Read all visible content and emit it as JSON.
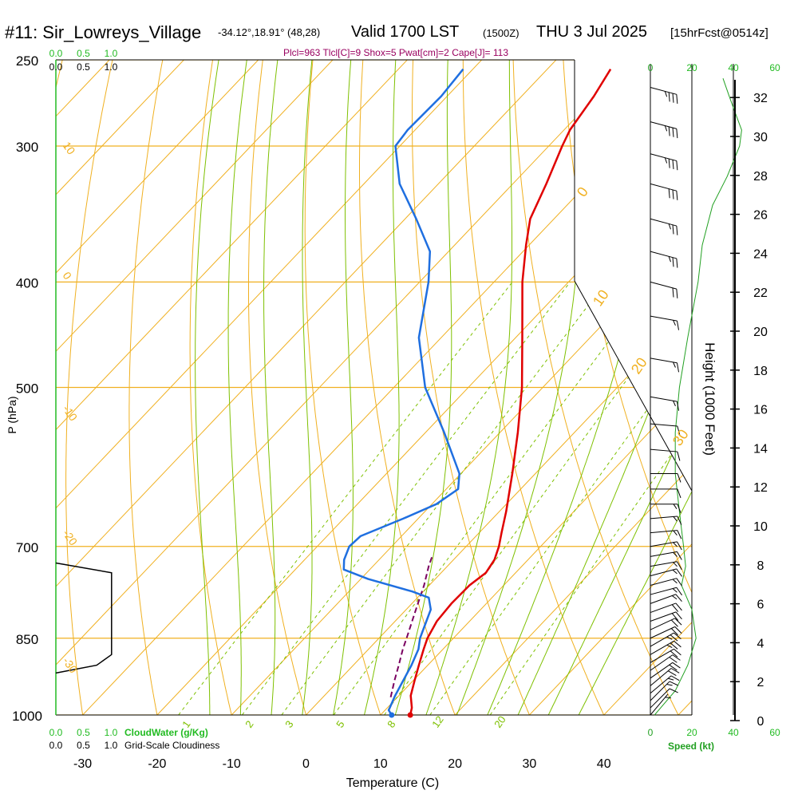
{
  "header": {
    "station": "#11: Sir_Lowreys_Village",
    "coords": "-34.12°,18.91° (48,28)",
    "valid_main": "Valid 1700 LST",
    "valid_utc": "(1500Z)",
    "date": "THU 3 Jul 2025",
    "forecast": "[15hrFcst@0514z]",
    "indices": "Plcl=963 Tlcl[C]=9 Shox=5 Pwat[cm]=2 Cape[J]= 113"
  },
  "colors": {
    "temperature": "#e00000",
    "dewpoint": "#1f6fe0",
    "parcel": "#7a0060",
    "isotherm": "#f0b020",
    "dry_adiabat": "#f0b020",
    "moist_adiabat": "#7ec000",
    "mixing_ratio": "#7ec000",
    "wind_speed": "#22a022",
    "cloud_labels": "#22bb22",
    "indices_text": "#990060"
  },
  "chart_data": {
    "type": "line",
    "chart_kind": "skew-T log-P sounding",
    "xlabel": "Temperature (C)",
    "ylabel": "P (hPa)",
    "y2label": "Height (1000 Feet)",
    "xticks": [
      -30,
      -20,
      -10,
      0,
      10,
      20,
      30,
      40
    ],
    "pressure_ticks": [
      250,
      300,
      400,
      500,
      700,
      850,
      1000
    ],
    "height_ticks": [
      0,
      2,
      4,
      6,
      8,
      10,
      12,
      14,
      16,
      18,
      20,
      22,
      24,
      26,
      28,
      30,
      32
    ],
    "isotherm_labels": [
      "10",
      "0",
      "-10",
      "-20",
      "-30"
    ],
    "right_isotherm_labels": [
      "0",
      "10",
      "20",
      "30"
    ],
    "mixing_ratio_labels": [
      "1",
      "2",
      "3",
      "5",
      "8",
      "12",
      "20"
    ],
    "cloudwater_label": "CloudWater (g/Kg)",
    "cloudiness_label": "Grid-Scale Cloudiness",
    "scale_ticks": [
      "0.0",
      "0.5",
      "1.0"
    ],
    "speed_label": "Speed (kt)",
    "speed_ticks": [
      "0",
      "20",
      "40",
      "60"
    ],
    "temperature": [
      {
        "p": 1000,
        "t": 14
      },
      {
        "p": 985,
        "t": 13.3
      },
      {
        "p": 960,
        "t": 11.6
      },
      {
        "p": 930,
        "t": 10.2
      },
      {
        "p": 900,
        "t": 8.8
      },
      {
        "p": 870,
        "t": 7.4
      },
      {
        "p": 850,
        "t": 6.5
      },
      {
        "p": 820,
        "t": 5.6
      },
      {
        "p": 790,
        "t": 5.3
      },
      {
        "p": 760,
        "t": 5.4
      },
      {
        "p": 740,
        "t": 6.0
      },
      {
        "p": 720,
        "t": 5.5
      },
      {
        "p": 700,
        "t": 4.4
      },
      {
        "p": 680,
        "t": 3.0
      },
      {
        "p": 650,
        "t": 0.9
      },
      {
        "p": 600,
        "t": -3.1
      },
      {
        "p": 550,
        "t": -7.6
      },
      {
        "p": 500,
        "t": -12.8
      },
      {
        "p": 450,
        "t": -19.1
      },
      {
        "p": 400,
        "t": -26.2
      },
      {
        "p": 370,
        "t": -30.4
      },
      {
        "p": 350,
        "t": -33.2
      },
      {
        "p": 325,
        "t": -35.5
      },
      {
        "p": 300,
        "t": -38.2
      },
      {
        "p": 290,
        "t": -39.2
      },
      {
        "p": 270,
        "t": -40.3
      },
      {
        "p": 255,
        "t": -41.5
      }
    ],
    "dewpoint": [
      {
        "p": 1000,
        "t": 11.5
      },
      {
        "p": 990,
        "t": 10.5
      },
      {
        "p": 960,
        "t": 9.5
      },
      {
        "p": 900,
        "t": 7.8
      },
      {
        "p": 870,
        "t": 6.7
      },
      {
        "p": 850,
        "t": 5.5
      },
      {
        "p": 820,
        "t": 4.2
      },
      {
        "p": 800,
        "t": 3.3
      },
      {
        "p": 780,
        "t": 1.5
      },
      {
        "p": 770,
        "t": -1.5
      },
      {
        "p": 750,
        "t": -9.0
      },
      {
        "p": 735,
        "t": -13.5
      },
      {
        "p": 720,
        "t": -14.7
      },
      {
        "p": 700,
        "t": -15.7
      },
      {
        "p": 685,
        "t": -15.5
      },
      {
        "p": 660,
        "t": -12.0
      },
      {
        "p": 640,
        "t": -9.4
      },
      {
        "p": 620,
        "t": -8.4
      },
      {
        "p": 600,
        "t": -10.2
      },
      {
        "p": 550,
        "t": -17.5
      },
      {
        "p": 500,
        "t": -25.8
      },
      {
        "p": 450,
        "t": -33.0
      },
      {
        "p": 400,
        "t": -38.8
      },
      {
        "p": 375,
        "t": -42.5
      },
      {
        "p": 350,
        "t": -48.5
      },
      {
        "p": 325,
        "t": -55.2
      },
      {
        "p": 300,
        "t": -60.6
      },
      {
        "p": 290,
        "t": -61.0
      },
      {
        "p": 270,
        "t": -60.8
      },
      {
        "p": 255,
        "t": -61.3
      }
    ],
    "parcel": [
      {
        "p": 963,
        "t": 9.1
      },
      {
        "p": 930,
        "t": 7.5
      },
      {
        "p": 900,
        "t": 6.1
      },
      {
        "p": 870,
        "t": 4.6
      },
      {
        "p": 850,
        "t": 3.7
      },
      {
        "p": 800,
        "t": 1.3
      },
      {
        "p": 760,
        "t": -0.7
      },
      {
        "p": 730,
        "t": -2.5
      },
      {
        "p": 715,
        "t": -3.3
      }
    ],
    "wind_speed": [
      {
        "p": 1000,
        "kt": 2
      },
      {
        "p": 950,
        "kt": 12
      },
      {
        "p": 900,
        "kt": 18
      },
      {
        "p": 850,
        "kt": 22
      },
      {
        "p": 800,
        "kt": 20
      },
      {
        "p": 760,
        "kt": 15
      },
      {
        "p": 730,
        "kt": 17
      },
      {
        "p": 700,
        "kt": 16
      },
      {
        "p": 650,
        "kt": 14
      },
      {
        "p": 600,
        "kt": 12
      },
      {
        "p": 550,
        "kt": 12
      },
      {
        "p": 500,
        "kt": 14
      },
      {
        "p": 450,
        "kt": 18
      },
      {
        "p": 400,
        "kt": 23
      },
      {
        "p": 370,
        "kt": 25
      },
      {
        "p": 340,
        "kt": 30
      },
      {
        "p": 320,
        "kt": 37
      },
      {
        "p": 300,
        "kt": 43
      },
      {
        "p": 290,
        "kt": 44
      },
      {
        "p": 280,
        "kt": 41
      },
      {
        "p": 270,
        "kt": 38
      },
      {
        "p": 260,
        "kt": 35
      }
    ],
    "wind_barbs": [
      {
        "p": 1000,
        "dir": 220,
        "kt": 5
      },
      {
        "p": 985,
        "dir": 225,
        "kt": 10
      },
      {
        "p": 970,
        "dir": 225,
        "kt": 15
      },
      {
        "p": 955,
        "dir": 230,
        "kt": 15
      },
      {
        "p": 940,
        "dir": 230,
        "kt": 20
      },
      {
        "p": 925,
        "dir": 235,
        "kt": 20
      },
      {
        "p": 910,
        "dir": 235,
        "kt": 20
      },
      {
        "p": 895,
        "dir": 240,
        "kt": 20
      },
      {
        "p": 880,
        "dir": 240,
        "kt": 25
      },
      {
        "p": 865,
        "dir": 240,
        "kt": 25
      },
      {
        "p": 850,
        "dir": 245,
        "kt": 20
      },
      {
        "p": 835,
        "dir": 245,
        "kt": 20
      },
      {
        "p": 820,
        "dir": 250,
        "kt": 20
      },
      {
        "p": 805,
        "dir": 250,
        "kt": 20
      },
      {
        "p": 790,
        "dir": 250,
        "kt": 15
      },
      {
        "p": 775,
        "dir": 255,
        "kt": 15
      },
      {
        "p": 760,
        "dir": 255,
        "kt": 15
      },
      {
        "p": 745,
        "dir": 255,
        "kt": 15
      },
      {
        "p": 730,
        "dir": 260,
        "kt": 15
      },
      {
        "p": 715,
        "dir": 260,
        "kt": 15
      },
      {
        "p": 700,
        "dir": 260,
        "kt": 15
      },
      {
        "p": 680,
        "dir": 265,
        "kt": 15
      },
      {
        "p": 660,
        "dir": 265,
        "kt": 15
      },
      {
        "p": 640,
        "dir": 270,
        "kt": 15
      },
      {
        "p": 620,
        "dir": 270,
        "kt": 10
      },
      {
        "p": 600,
        "dir": 270,
        "kt": 10
      },
      {
        "p": 570,
        "dir": 275,
        "kt": 10
      },
      {
        "p": 540,
        "dir": 275,
        "kt": 10
      },
      {
        "p": 510,
        "dir": 280,
        "kt": 15
      },
      {
        "p": 470,
        "dir": 280,
        "kt": 15
      },
      {
        "p": 430,
        "dir": 280,
        "kt": 15
      },
      {
        "p": 400,
        "dir": 285,
        "kt": 20
      },
      {
        "p": 375,
        "dir": 285,
        "kt": 25
      },
      {
        "p": 350,
        "dir": 285,
        "kt": 25
      },
      {
        "p": 325,
        "dir": 285,
        "kt": 30
      },
      {
        "p": 305,
        "dir": 285,
        "kt": 35
      },
      {
        "p": 285,
        "dir": 285,
        "kt": 35
      },
      {
        "p": 265,
        "dir": 285,
        "kt": 35
      }
    ],
    "cloudiness": [
      {
        "p": 725,
        "v": 0.0
      },
      {
        "p": 740,
        "v": 0.75
      },
      {
        "p": 880,
        "v": 0.75
      },
      {
        "p": 900,
        "v": 0.55
      },
      {
        "p": 915,
        "v": 0.0
      }
    ]
  }
}
